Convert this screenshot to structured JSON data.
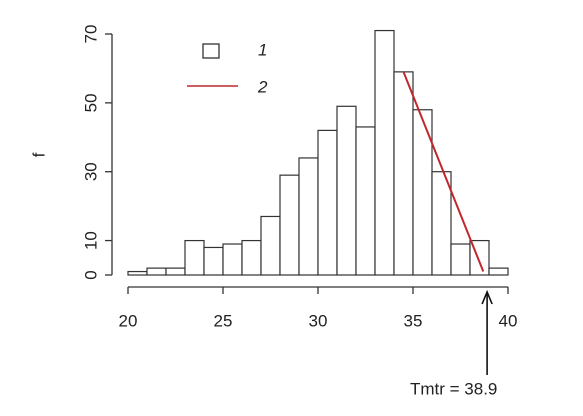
{
  "chart_data": {
    "type": "histogram",
    "ylabel": "f",
    "bins": [
      20,
      21,
      22,
      23,
      24,
      25,
      26,
      27,
      28,
      29,
      30,
      31,
      32,
      33,
      34,
      35,
      36,
      37,
      38,
      39,
      40
    ],
    "values": [
      1,
      2,
      2,
      10,
      8,
      9,
      10,
      17,
      29,
      34,
      42,
      49,
      43,
      71,
      59,
      48,
      30,
      9,
      10,
      2
    ],
    "name": "1",
    "color": "#ffffff",
    "line": {
      "name": "2",
      "color": "#c0282d",
      "x": [
        34.5,
        38.7
      ],
      "values": [
        59,
        1
      ]
    },
    "xlim": [
      20,
      40
    ],
    "xticks": [
      20,
      25,
      30,
      35,
      40
    ],
    "ylim": [
      0,
      70
    ],
    "yticks": [
      0,
      10,
      30,
      50,
      70
    ],
    "annotation": {
      "text": "Tmtr = 38.9",
      "x": 38.9
    }
  }
}
